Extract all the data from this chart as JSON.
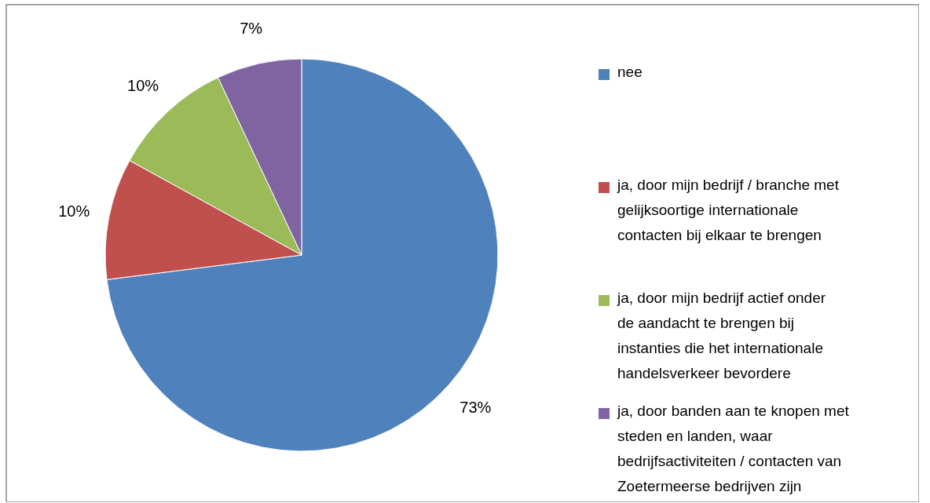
{
  "chart_data": {
    "type": "pie",
    "categories": [
      "nee",
      "ja, door mijn bedrijf / branche met gelijksoortige internationale contacten bij elkaar te brengen",
      "ja, door mijn bedrijf actief onder de aandacht te brengen bij instanties die het internationale handelsverkeer bevordere",
      "ja, door banden aan te knopen met steden en landen, waar bedrijfsactiviteiten / contacten van Zoetermeerse bedrijven zijn"
    ],
    "values": [
      73,
      10,
      10,
      7
    ],
    "colors": [
      "#4f81bd",
      "#c0504d",
      "#9bbb59",
      "#8064a2"
    ],
    "value_labels": [
      "73%",
      "10%",
      "10%",
      "7%"
    ],
    "legend": "right"
  }
}
